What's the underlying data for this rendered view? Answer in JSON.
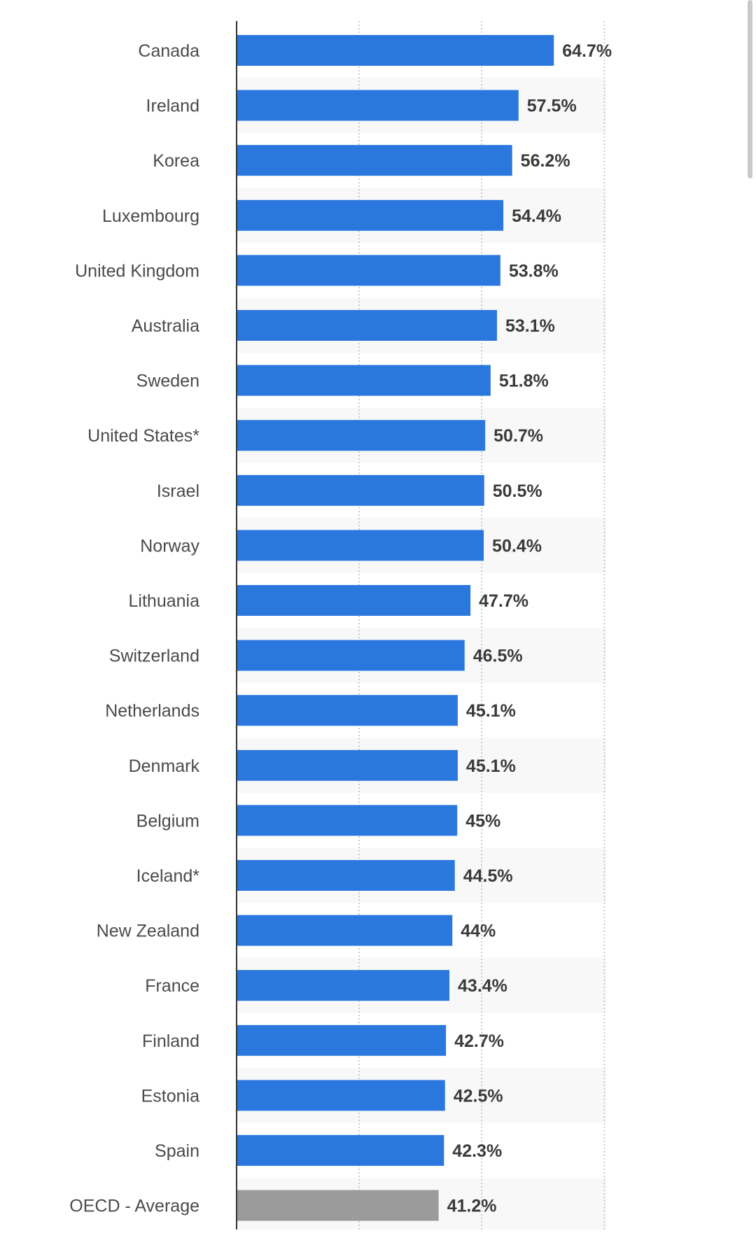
{
  "chart_data": {
    "type": "bar",
    "orientation": "horizontal",
    "categories": [
      "Canada",
      "Ireland",
      "Korea",
      "Luxembourg",
      "United Kingdom",
      "Australia",
      "Sweden",
      "United States*",
      "Israel",
      "Norway",
      "Lithuania",
      "Switzerland",
      "Netherlands",
      "Denmark",
      "Belgium",
      "Iceland*",
      "New Zealand",
      "France",
      "Finland",
      "Estonia",
      "Spain",
      "OECD - Average"
    ],
    "values": [
      64.7,
      57.5,
      56.2,
      54.4,
      53.8,
      53.1,
      51.8,
      50.7,
      50.5,
      50.4,
      47.7,
      46.5,
      45.1,
      45.1,
      45,
      44.5,
      44,
      43.4,
      42.7,
      42.5,
      42.3,
      41.2
    ],
    "value_labels": [
      "64.7%",
      "57.5%",
      "56.2%",
      "54.4%",
      "53.8%",
      "53.1%",
      "51.8%",
      "50.7%",
      "50.5%",
      "50.4%",
      "47.7%",
      "46.5%",
      "45.1%",
      "45.1%",
      "45%",
      "44.5%",
      "44%",
      "43.4%",
      "42.7%",
      "42.5%",
      "42.3%",
      "41.2%"
    ],
    "title": "",
    "xlabel": "",
    "ylabel": "",
    "unit": "%",
    "xlim": [
      0,
      75
    ],
    "gridlines": [
      25,
      50,
      75
    ],
    "grid": true,
    "bar_color": "#2a78de",
    "highlight_color": "#9b9b9b",
    "highlight_category": "OECD - Average",
    "row_band_color": "#f8f8f8"
  }
}
